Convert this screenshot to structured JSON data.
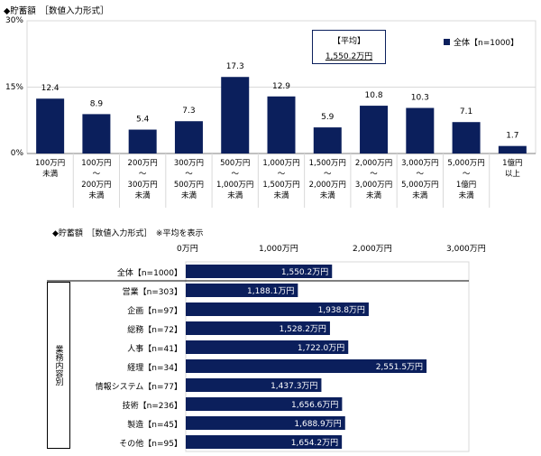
{
  "colors": {
    "bar": "#0b1f5c",
    "grid": "#d9d9d9",
    "axis": "#808080"
  },
  "chart1": {
    "title": "◆貯蓄額　［数値入力形式］",
    "y_ticks": [
      "30%",
      "15%",
      "0%"
    ],
    "average_box": {
      "line1": "【平均】",
      "line2": "1,550.2万円"
    },
    "legend": "全体【n=1000】"
  },
  "chart2": {
    "title": "◆貯蓄額　［数値入力形式］　※平均を表示",
    "x_ticks": [
      "0万円",
      "1,000万円",
      "2,000万円",
      "3,000万円"
    ],
    "group_label": "業務内容別"
  },
  "chart_data": [
    {
      "type": "bar",
      "title": "◆貯蓄額　［数値入力形式］",
      "categories": [
        [
          "100万円",
          "未満"
        ],
        [
          "100万円",
          "～",
          "200万円",
          "未満"
        ],
        [
          "200万円",
          "～",
          "300万円",
          "未満"
        ],
        [
          "300万円",
          "～",
          "500万円",
          "未満"
        ],
        [
          "500万円",
          "～",
          "1,000万円",
          "未満"
        ],
        [
          "1,000万円",
          "～",
          "1,500万円",
          "未満"
        ],
        [
          "1,500万円",
          "～",
          "2,000万円",
          "未満"
        ],
        [
          "2,000万円",
          "～",
          "3,000万円",
          "未満"
        ],
        [
          "3,000万円",
          "～",
          "5,000万円",
          "未満"
        ],
        [
          "5,000万円",
          "～",
          "1億円",
          "未満"
        ],
        [
          "1億円",
          "以上"
        ]
      ],
      "series": [
        {
          "name": "全体【n=1000】",
          "values": [
            12.4,
            8.9,
            5.4,
            7.3,
            17.3,
            12.9,
            5.9,
            10.8,
            10.3,
            7.1,
            1.7
          ]
        }
      ],
      "value_labels": [
        "12.4",
        "8.9",
        "5.4",
        "7.3",
        "17.3",
        "12.9",
        "5.9",
        "10.8",
        "10.3",
        "7.1",
        "1.7"
      ],
      "ylim": [
        0,
        30
      ],
      "y_unit": "%",
      "annotation": "【平均】 1,550.2万円",
      "legend_position": "top-right"
    },
    {
      "type": "bar",
      "orientation": "horizontal",
      "title": "◆貯蓄額　［数値入力形式］　※平均を表示",
      "categories": [
        "全体【n=1000】",
        "営業【n=303】",
        "企画【n=97】",
        "総務【n=72】",
        "人事【n=41】",
        "経理【n=34】",
        "情報システム【n=77】",
        "技術【n=236】",
        "製造【n=45】",
        "その他【n=95】"
      ],
      "values": [
        1550.2,
        1188.1,
        1938.8,
        1528.2,
        1722.0,
        2551.5,
        1437.3,
        1656.6,
        1688.9,
        1654.2
      ],
      "value_labels": [
        "1,550.2万円",
        "1,188.1万円",
        "1,938.8万円",
        "1,528.2万円",
        "1,722.0万円",
        "2,551.5万円",
        "1,437.3万円",
        "1,656.6万円",
        "1,688.9万円",
        "1,654.2万円"
      ],
      "xlim": [
        0,
        3000
      ],
      "x_unit": "万円",
      "group_label": "業務内容別"
    }
  ]
}
